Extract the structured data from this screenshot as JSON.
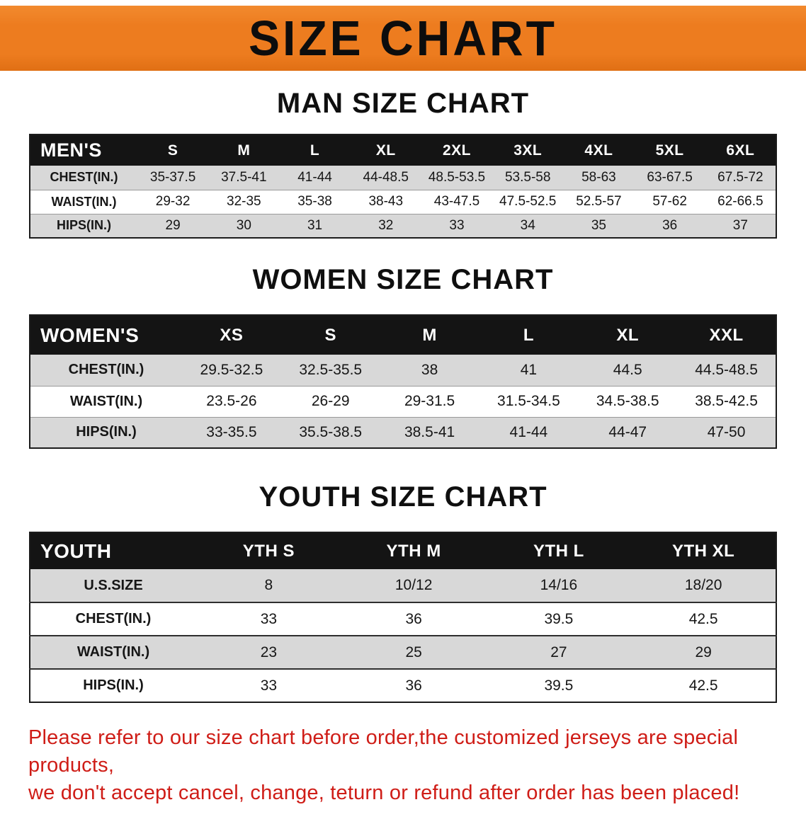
{
  "banner": {
    "title": "SIZE CHART"
  },
  "colors": {
    "banner_bg": "#ed7c1f",
    "banner_text": "#0d0d0d",
    "table_header_bg": "#141414",
    "table_header_text": "#ffffff",
    "row_shade": "#d8d8d8",
    "disclaimer_text": "#cf1d17"
  },
  "chart_data": [
    {
      "type": "table",
      "title": "MAN SIZE CHART",
      "header_label": "MEN'S",
      "columns": [
        "S",
        "M",
        "L",
        "XL",
        "2XL",
        "3XL",
        "4XL",
        "5XL",
        "6XL"
      ],
      "rows": [
        {
          "label": "CHEST(IN.)",
          "values": [
            "35-37.5",
            "37.5-41",
            "41-44",
            "44-48.5",
            "48.5-53.5",
            "53.5-58",
            "58-63",
            "63-67.5",
            "67.5-72"
          ]
        },
        {
          "label": "WAIST(IN.)",
          "values": [
            "29-32",
            "32-35",
            "35-38",
            "38-43",
            "43-47.5",
            "47.5-52.5",
            "52.5-57",
            "57-62",
            "62-66.5"
          ]
        },
        {
          "label": "HIPS(IN.)",
          "values": [
            "29",
            "30",
            "31",
            "32",
            "33",
            "34",
            "35",
            "36",
            "37"
          ]
        }
      ]
    },
    {
      "type": "table",
      "title": "WOMEN SIZE CHART",
      "header_label": "WOMEN'S",
      "columns": [
        "XS",
        "S",
        "M",
        "L",
        "XL",
        "XXL"
      ],
      "rows": [
        {
          "label": "CHEST(IN.)",
          "values": [
            "29.5-32.5",
            "32.5-35.5",
            "38",
            "41",
            "44.5",
            "44.5-48.5"
          ]
        },
        {
          "label": "WAIST(IN.)",
          "values": [
            "23.5-26",
            "26-29",
            "29-31.5",
            "31.5-34.5",
            "34.5-38.5",
            "38.5-42.5"
          ]
        },
        {
          "label": "HIPS(IN.)",
          "values": [
            "33-35.5",
            "35.5-38.5",
            "38.5-41",
            "41-44",
            "44-47",
            "47-50"
          ]
        }
      ]
    },
    {
      "type": "table",
      "title": "YOUTH SIZE CHART",
      "header_label": "YOUTH",
      "columns": [
        "YTH S",
        "YTH M",
        "YTH L",
        "YTH XL"
      ],
      "rows": [
        {
          "label": "U.S.SIZE",
          "values": [
            "8",
            "10/12",
            "14/16",
            "18/20"
          ]
        },
        {
          "label": "CHEST(IN.)",
          "values": [
            "33",
            "36",
            "39.5",
            "42.5"
          ]
        },
        {
          "label": "WAIST(IN.)",
          "values": [
            "23",
            "25",
            "27",
            "29"
          ]
        },
        {
          "label": "HIPS(IN.)",
          "values": [
            "33",
            "36",
            "39.5",
            "42.5"
          ]
        }
      ]
    }
  ],
  "disclaimer": {
    "line1": "Please refer to our size chart before order,the customized jerseys are special products,",
    "line2": "we don't accept cancel, change, teturn or refund after order has been placed!"
  }
}
